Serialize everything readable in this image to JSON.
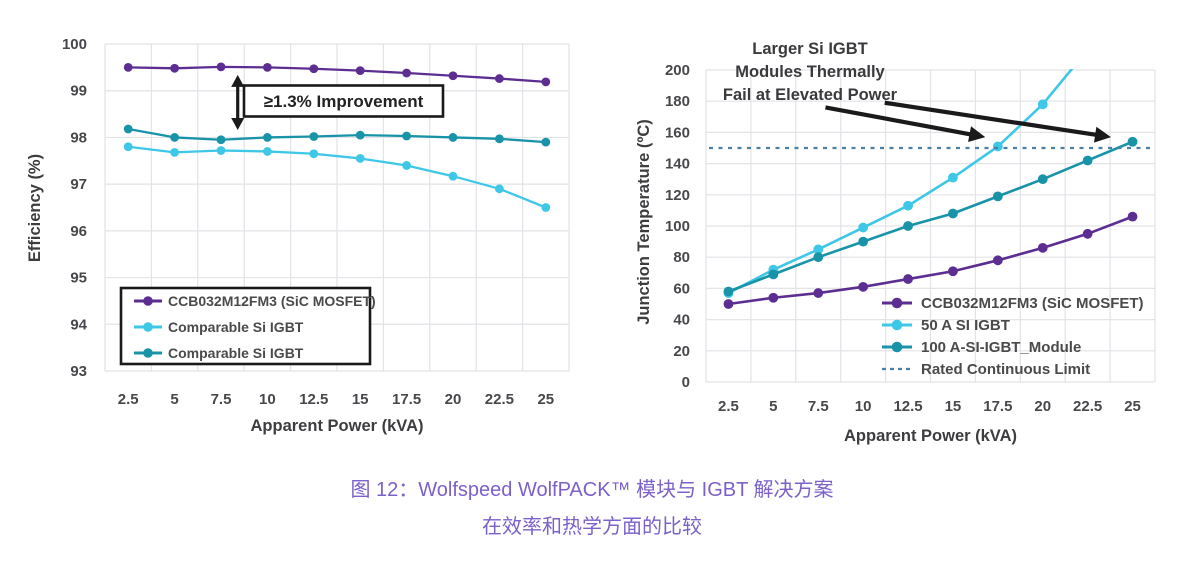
{
  "figure": {
    "caption_line1": "图 12：Wolfspeed WolfPACK™ 模块与 IGBT 解决方案",
    "caption_line2": "在效率和热学方面的比较"
  },
  "colors": {
    "grid": "#e3e3e8",
    "axis_text": "#48484c",
    "axis_label_text": "#3d3d40",
    "annotation_text": "#3a3a3d",
    "arrow_black": "#1a1a1a",
    "box_border": "#1a1a1a",
    "box_fill": "#ffffff",
    "caption_purple": "#7b61c9"
  },
  "chart_data": [
    {
      "type": "line",
      "title": "",
      "xlabel": "Apparent Power (kVA)",
      "ylabel": "Efficiency (%)",
      "x": [
        2.5,
        5,
        7.5,
        10,
        12.5,
        15,
        17.5,
        20,
        22.5,
        25
      ],
      "xlim": [
        2.5,
        25
      ],
      "ylim": [
        93,
        100
      ],
      "yticks": [
        93,
        94,
        95,
        96,
        97,
        98,
        99,
        100
      ],
      "grid": true,
      "legend_position": "lower-left",
      "legend_boxed": true,
      "series": [
        {
          "name": "CCB032M12FM3 (SiC MOSFET)",
          "color": "#5c2e91",
          "marker": "circle",
          "values": [
            99.5,
            99.48,
            99.51,
            99.5,
            99.47,
            99.43,
            99.38,
            99.32,
            99.26,
            99.19
          ]
        },
        {
          "name": "Comparable Si IGBT",
          "color": "#3ec7e6",
          "marker": "circle",
          "values": [
            97.8,
            97.68,
            97.72,
            97.7,
            97.65,
            97.55,
            97.4,
            97.17,
            96.9,
            96.5
          ]
        },
        {
          "name": "Comparable Si IGBT",
          "color": "#1893a8",
          "marker": "circle",
          "values": [
            98.18,
            98.0,
            97.95,
            98.0,
            98.02,
            98.05,
            98.03,
            98.0,
            97.97,
            97.9
          ]
        }
      ],
      "annotations": [
        {
          "type": "double-arrow",
          "x": 8.4,
          "y1": 99.34,
          "y2": 98.16
        },
        {
          "type": "textbox",
          "text": "≥1.3% Improvement",
          "x": 14.1,
          "y": 98.78
        }
      ]
    },
    {
      "type": "line",
      "title": "",
      "xlabel": "Apparent Power (kVA)",
      "ylabel": "Junction Temperature (ºC)",
      "x": [
        2.5,
        5,
        7.5,
        10,
        12.5,
        15,
        17.5,
        20,
        22.5,
        25
      ],
      "xlim": [
        2.5,
        25
      ],
      "ylim": [
        0,
        200
      ],
      "yticks": [
        0,
        20,
        40,
        60,
        80,
        100,
        120,
        140,
        160,
        180,
        200
      ],
      "grid": true,
      "legend_position": "lower-right",
      "legend_boxed": false,
      "series": [
        {
          "name": "CCB032M12FM3 (SiC MOSFET)",
          "color": "#5c2e91",
          "marker": "circle",
          "values": [
            50,
            54,
            57,
            61,
            66,
            71,
            78,
            86,
            95,
            106
          ]
        },
        {
          "name": "50 A SI IGBT",
          "color": "#3ec7e6",
          "marker": "circle",
          "values": [
            57,
            72,
            85,
            99,
            113,
            131,
            151,
            178,
            213
          ]
        },
        {
          "name": "100 A-SI-IGBT_Module",
          "color": "#1893a8",
          "marker": "circle",
          "values": [
            58,
            69,
            80,
            90,
            100,
            108,
            119,
            130,
            142,
            154
          ]
        },
        {
          "name": "Rated Continuous Limit",
          "color": "#4d7fa3",
          "style": "dashed",
          "const": 150
        }
      ],
      "annotations": [
        {
          "type": "text",
          "lines": [
            "Larger Si IGBT",
            "Modules Thermally",
            "Fail at Elevated Power"
          ]
        },
        {
          "type": "arrow",
          "from": [
            7.9,
            176
          ],
          "to": [
            16.8,
            157
          ]
        },
        {
          "type": "arrow",
          "from": [
            11.2,
            179
          ],
          "to": [
            23.8,
            157
          ]
        }
      ]
    }
  ]
}
